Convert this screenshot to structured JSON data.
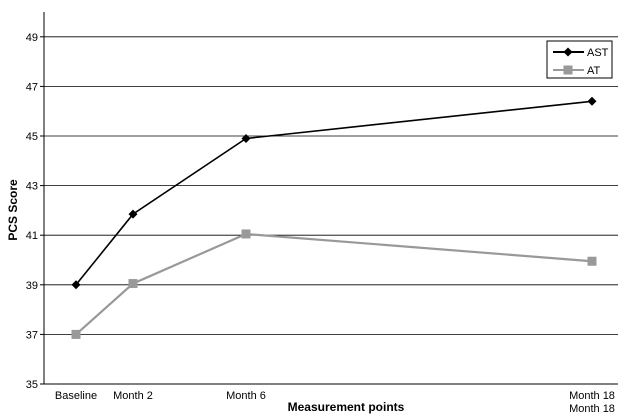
{
  "chart_data": {
    "type": "line",
    "title": "",
    "xlabel": "Measurement points",
    "ylabel": "PCS Score",
    "x": [
      0,
      2,
      6,
      18
    ],
    "categories": [
      "Baseline",
      "Month 2",
      "Month 6",
      "Month 18"
    ],
    "extra_tick_label": "Month 18",
    "ylim": [
      35,
      50
    ],
    "yticks": [
      35,
      37,
      39,
      41,
      43,
      45,
      47,
      49
    ],
    "grid": true,
    "legend_position": "top-right",
    "series": [
      {
        "name": "AST",
        "color": "#000000",
        "marker": "diamond",
        "values": [
          39.0,
          41.85,
          44.9,
          46.4
        ]
      },
      {
        "name": "AT",
        "color": "#999999",
        "marker": "square",
        "values": [
          37.0,
          39.05,
          41.05,
          39.95
        ]
      }
    ]
  }
}
